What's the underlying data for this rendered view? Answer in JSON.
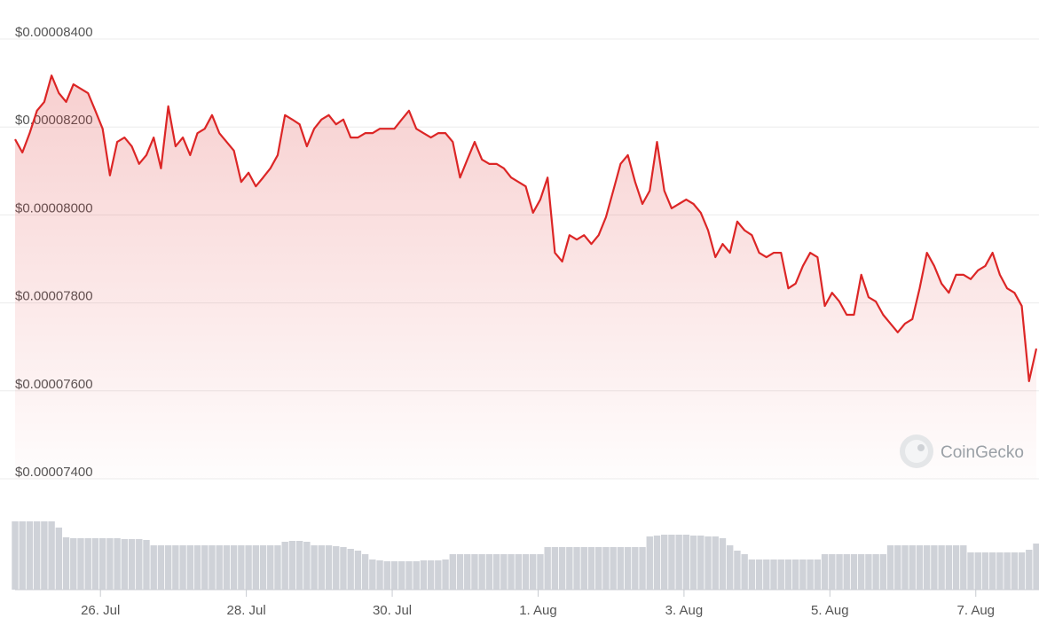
{
  "chart_data": {
    "type": "line",
    "watermark": "CoinGecko",
    "color": "#dc2626",
    "volume_color": "#cfd2d8",
    "ylim": [
      7.4e-05,
      8.4e-05
    ],
    "yticks": [
      {
        "value": 7.4e-05,
        "label": "$0.00007400"
      },
      {
        "value": 7.6e-05,
        "label": "$0.00007600"
      },
      {
        "value": 7.8e-05,
        "label": "$0.00007800"
      },
      {
        "value": 8e-05,
        "label": "$0.00008000"
      },
      {
        "value": 8.2e-05,
        "label": "$0.00008200"
      },
      {
        "value": 8.4e-05,
        "label": "$0.00008400"
      }
    ],
    "xlim": [
      24.83,
      38.83
    ],
    "xticks": [
      {
        "value": 26,
        "label": "26. Jul"
      },
      {
        "value": 28,
        "label": "28. Jul"
      },
      {
        "value": 30,
        "label": "30. Jul"
      },
      {
        "value": 32,
        "label": "1. Aug"
      },
      {
        "value": 34,
        "label": "3. Aug"
      },
      {
        "value": 36,
        "label": "5. Aug"
      },
      {
        "value": 38,
        "label": "7. Aug"
      }
    ],
    "grid": true,
    "y2lim": [
      0,
      85
    ],
    "x": [
      24.83,
      24.93,
      25.03,
      25.13,
      25.23,
      25.33,
      25.43,
      25.53,
      25.63,
      25.73,
      25.83,
      25.93,
      26.03,
      26.13,
      26.23,
      26.33,
      26.43,
      26.53,
      26.63,
      26.73,
      26.83,
      26.93,
      27.03,
      27.13,
      27.23,
      27.33,
      27.43,
      27.53,
      27.63,
      27.73,
      27.83,
      27.93,
      28.03,
      28.13,
      28.23,
      28.33,
      28.43,
      28.53,
      28.63,
      28.73,
      28.83,
      28.93,
      29.03,
      29.13,
      29.23,
      29.33,
      29.43,
      29.53,
      29.63,
      29.73,
      29.83,
      29.93,
      30.03,
      30.13,
      30.23,
      30.33,
      30.43,
      30.53,
      30.63,
      30.73,
      30.83,
      30.93,
      31.03,
      31.13,
      31.23,
      31.33,
      31.43,
      31.53,
      31.63,
      31.73,
      31.83,
      31.93,
      32.03,
      32.13,
      32.23,
      32.33,
      32.43,
      32.53,
      32.63,
      32.73,
      32.83,
      32.93,
      33.03,
      33.13,
      33.23,
      33.33,
      33.43,
      33.53,
      33.63,
      33.73,
      33.83,
      33.93,
      34.03,
      34.13,
      34.23,
      34.33,
      34.43,
      34.53,
      34.63,
      34.73,
      34.83,
      34.93,
      35.03,
      35.13,
      35.23,
      35.33,
      35.43,
      35.53,
      35.63,
      35.73,
      35.83,
      35.93,
      36.03,
      36.13,
      36.23,
      36.33,
      36.43,
      36.53,
      36.63,
      36.73,
      36.83,
      36.93,
      37.03,
      37.13,
      37.23,
      37.33,
      37.43,
      37.53,
      37.63,
      37.73,
      37.83,
      37.93,
      38.03,
      38.13,
      38.23,
      38.33,
      38.43,
      38.53,
      38.63,
      38.73,
      38.83
    ],
    "values": [
      8.172e-05,
      8.142e-05,
      8.186e-05,
      8.237e-05,
      8.257e-05,
      8.317e-05,
      8.277e-05,
      8.257e-05,
      8.297e-05,
      8.287e-05,
      8.277e-05,
      8.237e-05,
      8.196e-05,
      8.09e-05,
      8.166e-05,
      8.176e-05,
      8.156e-05,
      8.116e-05,
      8.136e-05,
      8.176e-05,
      8.106e-05,
      8.247e-05,
      8.156e-05,
      8.176e-05,
      8.136e-05,
      8.186e-05,
      8.196e-05,
      8.227e-05,
      8.186e-05,
      8.166e-05,
      8.146e-05,
      8.075e-05,
      8.096e-05,
      8.065e-05,
      8.085e-05,
      8.106e-05,
      8.136e-05,
      8.227e-05,
      8.217e-05,
      8.206e-05,
      8.156e-05,
      8.196e-05,
      8.217e-05,
      8.227e-05,
      8.206e-05,
      8.217e-05,
      8.176e-05,
      8.176e-05,
      8.186e-05,
      8.186e-05,
      8.196e-05,
      8.196e-05,
      8.196e-05,
      8.217e-05,
      8.237e-05,
      8.196e-05,
      8.186e-05,
      8.176e-05,
      8.186e-05,
      8.186e-05,
      8.166e-05,
      8.085e-05,
      8.126e-05,
      8.166e-05,
      8.126e-05,
      8.116e-05,
      8.116e-05,
      8.106e-05,
      8.085e-05,
      8.075e-05,
      8.065e-05,
      8.005e-05,
      8.035e-05,
      8.085e-05,
      7.914e-05,
      7.894e-05,
      7.954e-05,
      7.944e-05,
      7.954e-05,
      7.934e-05,
      7.954e-05,
      7.995e-05,
      8.055e-05,
      8.116e-05,
      8.136e-05,
      8.075e-05,
      8.025e-05,
      8.055e-05,
      8.166e-05,
      8.055e-05,
      8.015e-05,
      8.025e-05,
      8.035e-05,
      8.025e-05,
      8.005e-05,
      7.965e-05,
      7.904e-05,
      7.934e-05,
      7.914e-05,
      7.985e-05,
      7.965e-05,
      7.954e-05,
      7.914e-05,
      7.904e-05,
      7.914e-05,
      7.914e-05,
      7.833e-05,
      7.844e-05,
      7.884e-05,
      7.914e-05,
      7.904e-05,
      7.793e-05,
      7.823e-05,
      7.803e-05,
      7.773e-05,
      7.773e-05,
      7.864e-05,
      7.813e-05,
      7.803e-05,
      7.773e-05,
      7.753e-05,
      7.733e-05,
      7.753e-05,
      7.763e-05,
      7.833e-05,
      7.914e-05,
      7.884e-05,
      7.844e-05,
      7.823e-05,
      7.864e-05,
      7.864e-05,
      7.854e-05,
      7.874e-05,
      7.884e-05,
      7.914e-05,
      7.864e-05,
      7.833e-05,
      7.823e-05,
      7.793e-05,
      7.622e-05,
      7.696e-05
    ],
    "volume": [
      77,
      77,
      77,
      77,
      77,
      77,
      70,
      59,
      58,
      58,
      58,
      58,
      58,
      58,
      58,
      57,
      57,
      57,
      56,
      50,
      50,
      50,
      50,
      50,
      50,
      50,
      50,
      50,
      50,
      50,
      50,
      50,
      50,
      50,
      50,
      50,
      50,
      54,
      55,
      55,
      54,
      50,
      50,
      50,
      49,
      48,
      46,
      44,
      40,
      34,
      33,
      32,
      32,
      32,
      32,
      32,
      33,
      33,
      33,
      34,
      40,
      40,
      40,
      40,
      40,
      40,
      40,
      40,
      40,
      40,
      40,
      40,
      40,
      48,
      48,
      48,
      48,
      48,
      48,
      48,
      48,
      48,
      48,
      48,
      48,
      48,
      48,
      60,
      61,
      62,
      62,
      62,
      62,
      61,
      61,
      60,
      60,
      58,
      50,
      44,
      40,
      34,
      34,
      34,
      34,
      34,
      34,
      34,
      34,
      34,
      34,
      40,
      40,
      40,
      40,
      40,
      40,
      40,
      40,
      40,
      50,
      50,
      50,
      50,
      50,
      50,
      50,
      50,
      50,
      50,
      50,
      42,
      42,
      42,
      42,
      42,
      42,
      42,
      42,
      45,
      52
    ]
  }
}
